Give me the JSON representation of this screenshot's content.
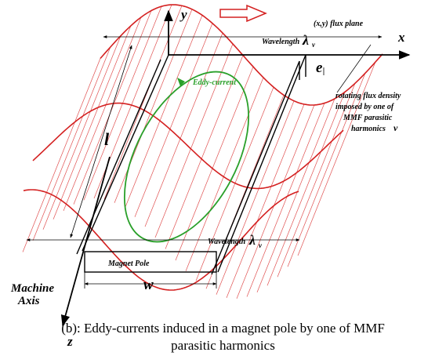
{
  "colors": {
    "flux_wave": "#d42020",
    "eddy": "#2aa02a",
    "ink": "#000000",
    "arrow_fill": "#ffffff"
  },
  "labels": {
    "y_axis": "y",
    "x_axis": "x",
    "z_axis": "z",
    "flux_plane": "(x,y) flux plane",
    "wavelength_top": "Wavelength",
    "wavelength_bottom": "Wavelength",
    "lambda_top": "λ",
    "lambda_bottom": "λ",
    "nu_sub": "ν",
    "e_label": "e",
    "eddy_current": "Eddy-current",
    "rotating_line1": "rotating flux density",
    "rotating_line2": "imposed by one of",
    "rotating_line3": "MMF parasitic",
    "rotating_line4": "harmonics",
    "rotating_nu": "ν",
    "length_label": "l",
    "magnet_pole": "Magnet Pole",
    "width_label": "w",
    "machine_axis_line1": "Machine",
    "machine_axis_line2": "Axis"
  },
  "caption": {
    "line1": "(b): Eddy-currents induced in a magnet pole by one of MMF",
    "line2": "parasitic harmonics"
  }
}
